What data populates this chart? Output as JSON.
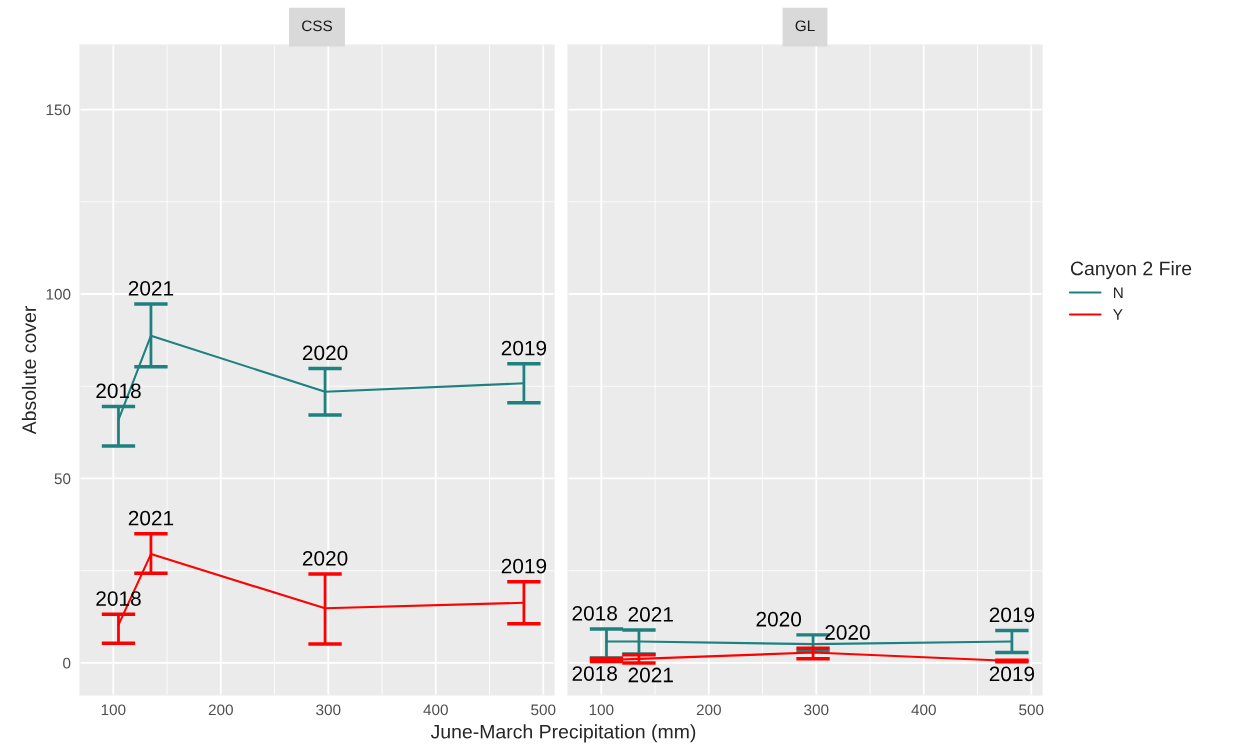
{
  "chart_data": [
    {
      "type": "line",
      "title": "CSS",
      "xlabel": "June-March Precipitation (mm)",
      "ylabel": "Absolute cover",
      "x": [
        104.8,
        135,
        297,
        482
      ],
      "series": [
        {
          "color": "#1f8080",
          "values": [
            65.9,
            88.7,
            73.5,
            75.8
          ],
          "errors": [
            [
              58.8,
              69.5
            ],
            [
              80.3,
              97.3
            ],
            [
              67.2,
              79.8
            ],
            [
              70.5,
              81.1
            ]
          ]
        },
        {
          "color": "#ff0000",
          "values": [
            10.3,
            29.5,
            14.8,
            16.3
          ],
          "errors": [
            [
              5.3,
              13.2
            ],
            [
              24.3,
              35.0
            ],
            [
              5.1,
              24.1
            ],
            [
              10.6,
              22.0
            ]
          ]
        }
      ],
      "annotations": [
        {
          "text": "2018",
          "x": 104.8,
          "y": 65.9
        },
        {
          "text": "2021",
          "x": 135,
          "y": 88.7
        },
        {
          "text": "2020",
          "x": 297,
          "y": 73.5
        },
        {
          "text": "2019",
          "x": 482,
          "y": 75.8
        },
        {
          "text": "2018",
          "x": 104.8,
          "y": 10.3
        },
        {
          "text": "2021",
          "x": 135,
          "y": 29.5
        },
        {
          "text": "2020",
          "x": 297,
          "y": 14.8
        },
        {
          "text": "2019",
          "x": 482,
          "y": 16.3
        }
      ],
      "xlim": [
        69,
        510
      ],
      "xticks": [
        100,
        200,
        300,
        400,
        500
      ],
      "ylim": [
        -8.7,
        167.5
      ],
      "yticks": [
        0,
        50,
        100,
        150
      ],
      "grid": true,
      "legend": false
    },
    {
      "type": "line",
      "title": "GL",
      "legend_title": "Canyon 2 Fire",
      "x": [
        104.8,
        135,
        297,
        482
      ],
      "series": [
        {
          "name": "N",
          "color": "#1f8080",
          "values": [
            5.8,
            5.8,
            5.1,
            5.8
          ],
          "errors": [
            [
              1.3,
              9.2
            ],
            [
              2.4,
              8.9
            ],
            [
              3.1,
              7.6
            ],
            [
              2.8,
              8.8
            ]
          ]
        },
        {
          "name": "Y",
          "color": "#ff0000",
          "values": [
            0.8,
            1.1,
            2.8,
            0.5
          ],
          "errors": [
            [
              0.4,
              1.2
            ],
            [
              0,
              2.2
            ],
            [
              1.1,
              4.0
            ],
            [
              0.3,
              0.7
            ]
          ]
        }
      ],
      "annotations": [
        {
          "text": "2018",
          "x": 104.8,
          "y": 5.8
        },
        {
          "text": "2021",
          "x": 135,
          "y": 5.8
        },
        {
          "text": "2020",
          "x": 297,
          "y": 5.1
        },
        {
          "text": "2019",
          "x": 482,
          "y": 5.8
        },
        {
          "text": "2018",
          "x": 104.8,
          "y": 0.8
        },
        {
          "text": "2021",
          "x": 135,
          "y": 1.1
        },
        {
          "text": "2020",
          "x": 297,
          "y": 2.8
        },
        {
          "text": "2019",
          "x": 482,
          "y": 0.5
        }
      ],
      "xlim": [
        69,
        510
      ],
      "xticks": [
        100,
        200,
        300,
        400,
        500
      ],
      "ylim": [
        -8.7,
        167.5
      ],
      "yticks": [
        0,
        50,
        100,
        150
      ],
      "grid": true,
      "legend": "right",
      "tick_labels": "x"
    }
  ]
}
